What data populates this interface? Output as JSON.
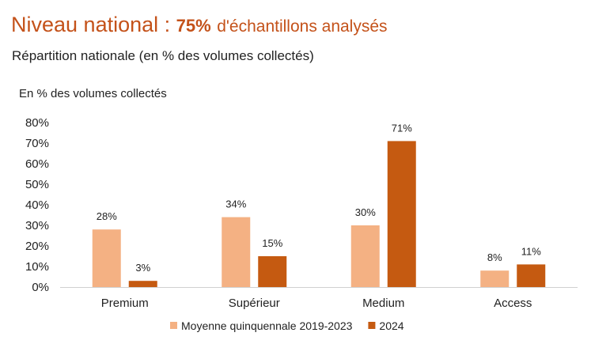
{
  "header": {
    "title_main": "Niveau national :",
    "title_highlight": "75%",
    "title_rest": "d'échantillons analysés",
    "subtitle": "Répartition nationale (en % des volumes collectés)"
  },
  "colors": {
    "series1": "#f4b183",
    "series2": "#c55a11",
    "title": "#c4521a"
  },
  "chart_data": {
    "type": "bar",
    "ylabel": "En % des volumes collectés",
    "categories": [
      "Premium",
      "Supérieur",
      "Medium",
      "Access"
    ],
    "series": [
      {
        "name": "Moyenne quinquennale 2019-2023",
        "values": [
          28,
          34,
          30,
          8
        ],
        "labels": [
          "28%",
          "34%",
          "30%",
          "8%"
        ]
      },
      {
        "name": "2024",
        "values": [
          3,
          15,
          71,
          11
        ],
        "labels": [
          "3%",
          "15%",
          "71%",
          "11%"
        ]
      }
    ],
    "ylim": [
      0,
      80
    ],
    "yticks": [
      "0%",
      "10%",
      "20%",
      "30%",
      "40%",
      "50%",
      "60%",
      "70%",
      "80%"
    ],
    "grid": false,
    "legend_position": "bottom"
  }
}
